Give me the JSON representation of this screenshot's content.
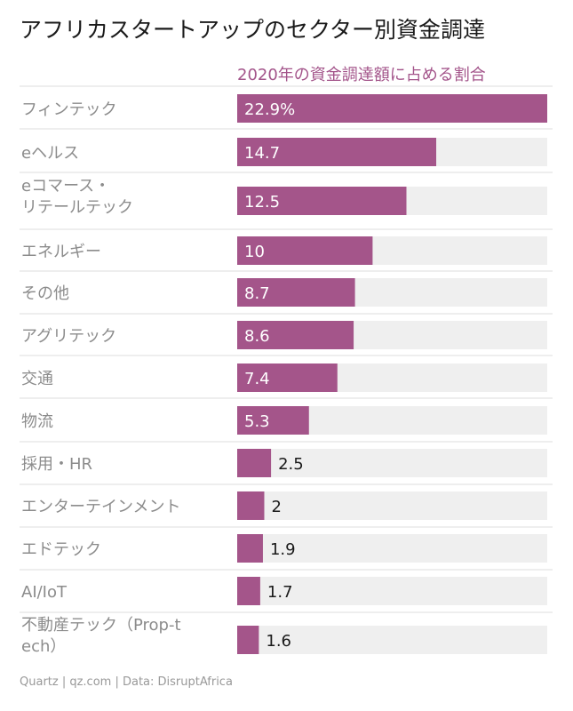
{
  "chart_data": {
    "type": "bar",
    "orientation": "horizontal",
    "title": "アフリカスタートアップのセクター別資金調達",
    "subtitle": "2020年の資金調達額に占める割合",
    "categories": [
      "フィンテック",
      "eヘルス",
      "eコマース・リテールテック",
      "エネルギー",
      "その他",
      "アグリテック",
      "交通",
      "物流",
      "採用・HR",
      "エンターテインメント",
      "エドテック",
      "AI/IoT",
      "不動産テック（Prop-tech）"
    ],
    "values": [
      22.9,
      14.7,
      12.5,
      10,
      8.7,
      8.6,
      7.4,
      5.3,
      2.5,
      2,
      1.9,
      1.7,
      1.6
    ],
    "value_labels": [
      "22.9%",
      "14.7",
      "12.5",
      "10",
      "8.7",
      "8.6",
      "7.4",
      "5.3",
      "2.5",
      "2",
      "1.9",
      "1.7",
      "1.6"
    ],
    "xlim": [
      0,
      22.9
    ],
    "grid": false,
    "colors": {
      "bar": "#a4558a",
      "track": "#efefef",
      "subtitle": "#a3548a"
    }
  },
  "source": "Quartz | qz.com | Data: DisruptAfrica"
}
